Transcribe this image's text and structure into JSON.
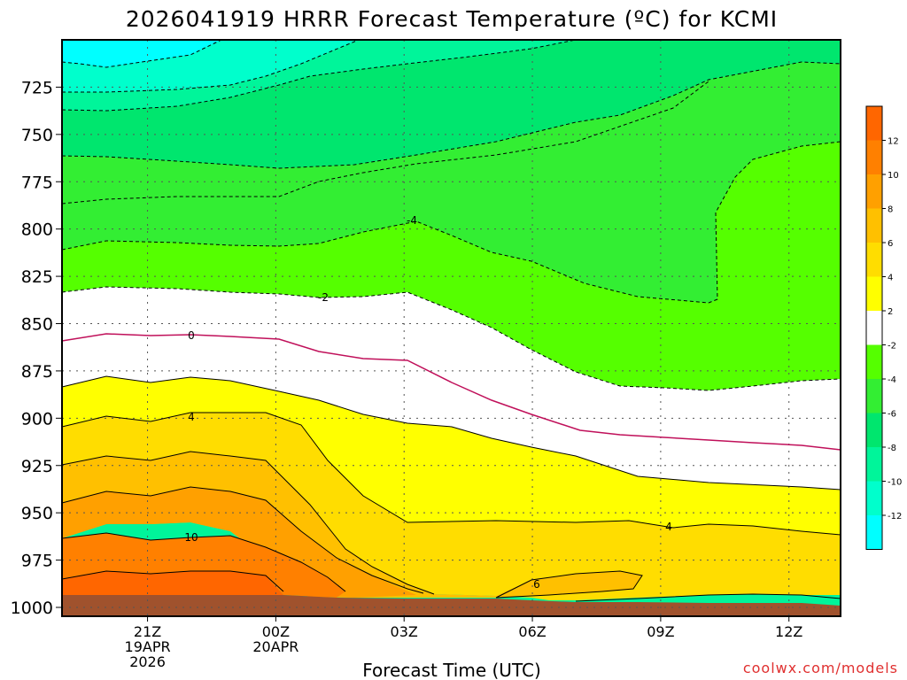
{
  "title": "2026041919 HRRR Forecast Temperature (ºC) for KCMI",
  "credit": "coolwx.com/models",
  "colors": {
    "t_lt_m12": "#00ffff",
    "t_m12_m10": "#00ffcc",
    "t_m10_m8": "#00f59a",
    "t_m8_m6": "#00e66e",
    "t_m6_m4": "#33ee33",
    "t_m4_m2": "#55ff00",
    "t_m2_2": "#ffffff",
    "t_2_4": "#ffff00",
    "t_4_6": "#ffdd00",
    "t_6_8": "#ffc000",
    "t_8_10": "#ffa000",
    "t_10_12": "#ff8000",
    "t_gt_12": "#ff6600",
    "ground": "#a0522d",
    "zero_line": "#c0105a"
  },
  "chart_data": {
    "type": "heatmap",
    "xlabel": "Forecast Time (UTC)",
    "ylabel": "",
    "ylim": [
      1000,
      700
    ],
    "xlim": [
      "2026-04-19T19:00Z",
      "2026-04-20T13:00Z"
    ],
    "yticks": [
      "725",
      "750",
      "775",
      "800",
      "825",
      "850",
      "875",
      "900",
      "925",
      "950",
      "975",
      "1000"
    ],
    "xticks": [
      {
        "line1": "21Z",
        "line2": "19APR",
        "line3": "2026"
      },
      {
        "line1": "00Z",
        "line2": "20APR",
        "line3": ""
      },
      {
        "line1": "03Z",
        "line2": "",
        "line3": ""
      },
      {
        "line1": "06Z",
        "line2": "",
        "line3": ""
      },
      {
        "line1": "09Z",
        "line2": "",
        "line3": ""
      },
      {
        "line1": "12Z",
        "line2": "",
        "line3": ""
      }
    ],
    "colorbar": [
      "12",
      "10",
      "8",
      "6",
      "4",
      "2",
      "-2",
      "-4",
      "-6",
      "-8",
      "-10",
      "-12"
    ],
    "contour_labels": [
      "-4",
      "-2",
      "0",
      "4",
      "10",
      "4",
      "6"
    ],
    "grid": true
  }
}
